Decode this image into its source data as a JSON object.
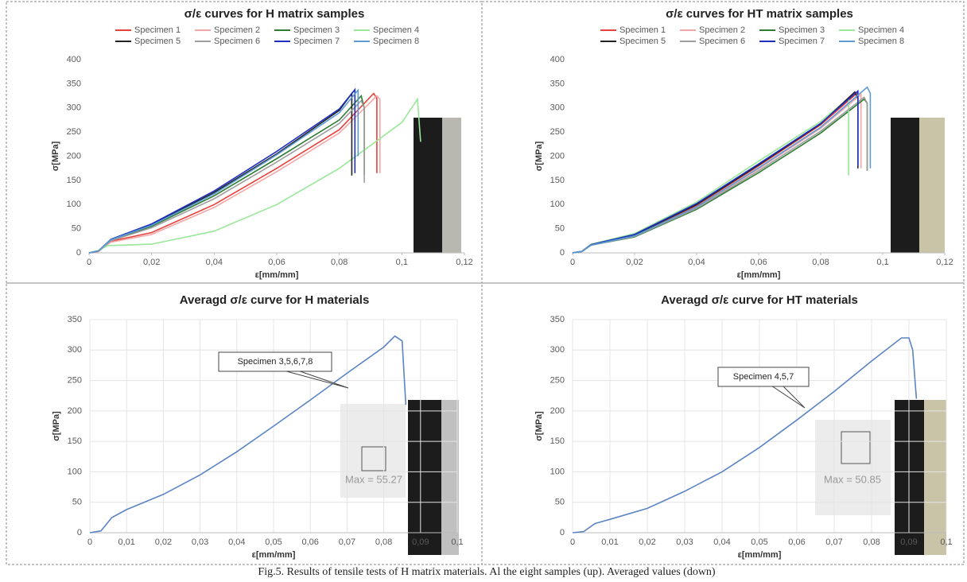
{
  "chart_data": [
    {
      "type": "line",
      "title": "σ/ε curves for H matrix samples",
      "xlabel": "ε[mm/mm]",
      "ylabel": "σ[MPa]",
      "xlim": [
        0,
        0.12
      ],
      "ylim": [
        0,
        400
      ],
      "grid": false,
      "legend": "top",
      "xticks": [
        0,
        {
          "value": 0.02,
          "label": "0,02"
        },
        {
          "value": 0.04,
          "label": "0,04"
        },
        {
          "value": 0.06,
          "label": "0,06"
        },
        {
          "value": 0.08,
          "label": "0,08"
        },
        {
          "value": 0.1,
          "label": "0,1"
        },
        {
          "value": 0.12,
          "label": "0,12"
        }
      ],
      "yticks": [
        0,
        50,
        100,
        150,
        200,
        250,
        300,
        350,
        400
      ],
      "series": [
        {
          "name": "Specimen 1",
          "color": "#e8413c",
          "x": [
            0,
            0.003,
            0.007,
            0.02,
            0.04,
            0.06,
            0.08,
            0.091,
            0.092,
            0.092
          ],
          "values": [
            0,
            3,
            24,
            42,
            100,
            175,
            255,
            330,
            320,
            165
          ]
        },
        {
          "name": "Specimen 2",
          "color": "#f4a6a6",
          "x": [
            0,
            0.003,
            0.007,
            0.02,
            0.04,
            0.06,
            0.08,
            0.092,
            0.093,
            0.093
          ],
          "values": [
            0,
            3,
            22,
            38,
            94,
            168,
            248,
            325,
            318,
            165
          ]
        },
        {
          "name": "Specimen 3",
          "color": "#2e7d32",
          "x": [
            0,
            0.003,
            0.007,
            0.02,
            0.04,
            0.06,
            0.08,
            0.087,
            0.088,
            0.088
          ],
          "values": [
            0,
            4,
            26,
            55,
            118,
            195,
            275,
            325,
            300,
            162
          ]
        },
        {
          "name": "Specimen 4",
          "color": "#98e898",
          "x": [
            0,
            0.003,
            0.006,
            0.02,
            0.04,
            0.06,
            0.08,
            0.1,
            0.105,
            0.106
          ],
          "values": [
            0,
            5,
            15,
            18,
            45,
            100,
            175,
            270,
            318,
            230
          ]
        },
        {
          "name": "Specimen 5",
          "color": "#222222",
          "x": [
            0,
            0.003,
            0.007,
            0.02,
            0.04,
            0.06,
            0.08,
            0.084,
            0.084
          ],
          "values": [
            0,
            4,
            27,
            58,
            125,
            205,
            295,
            330,
            160
          ]
        },
        {
          "name": "Specimen 6",
          "color": "#9e9e9e",
          "x": [
            0,
            0.003,
            0.007,
            0.02,
            0.04,
            0.06,
            0.08,
            0.087,
            0.088,
            0.088
          ],
          "values": [
            0,
            4,
            25,
            52,
            112,
            188,
            268,
            315,
            300,
            145
          ]
        },
        {
          "name": "Specimen 7",
          "color": "#1f2fbf",
          "x": [
            0,
            0.003,
            0.007,
            0.02,
            0.04,
            0.06,
            0.08,
            0.085,
            0.085
          ],
          "values": [
            0,
            4,
            28,
            60,
            128,
            210,
            298,
            338,
            165
          ]
        },
        {
          "name": "Specimen 8",
          "color": "#5b9bd5",
          "x": [
            0,
            0.003,
            0.007,
            0.02,
            0.04,
            0.06,
            0.08,
            0.086,
            0.086
          ],
          "values": [
            0,
            4,
            27,
            57,
            122,
            203,
            290,
            337,
            200
          ]
        }
      ]
    },
    {
      "type": "line",
      "title": "σ/ε curves for HT matrix samples",
      "xlabel": "ε[mm/mm]",
      "ylabel": "σ[MPa]",
      "xlim": [
        0,
        0.12
      ],
      "ylim": [
        0,
        400
      ],
      "grid": false,
      "legend": "top",
      "xticks": [
        0,
        {
          "value": 0.02,
          "label": "0,02"
        },
        {
          "value": 0.04,
          "label": "0,04"
        },
        {
          "value": 0.06,
          "label": "0,06"
        },
        {
          "value": 0.08,
          "label": "0,08"
        },
        {
          "value": 0.1,
          "label": "0,1"
        },
        {
          "value": 0.12,
          "label": "0,12"
        }
      ],
      "yticks": [
        0,
        50,
        100,
        150,
        200,
        250,
        300,
        350,
        400
      ],
      "series": [
        {
          "name": "Specimen 1",
          "color": "#e8413c",
          "x": [
            0,
            0.003,
            0.006,
            0.02,
            0.04,
            0.06,
            0.08,
            0.092,
            0.092
          ],
          "values": [
            0,
            3,
            17,
            36,
            98,
            180,
            265,
            332,
            180
          ]
        },
        {
          "name": "Specimen 2",
          "color": "#f4a6a6",
          "x": [
            0,
            0.003,
            0.006,
            0.02,
            0.04,
            0.06,
            0.08,
            0.093,
            0.093
          ],
          "values": [
            0,
            3,
            16,
            34,
            94,
            174,
            258,
            328,
            175
          ]
        },
        {
          "name": "Specimen 3",
          "color": "#2e7d32",
          "x": [
            0,
            0.003,
            0.006,
            0.02,
            0.04,
            0.06,
            0.08,
            0.094,
            0.095,
            0.095
          ],
          "values": [
            0,
            3,
            16,
            33,
            90,
            166,
            248,
            318,
            310,
            170
          ]
        },
        {
          "name": "Specimen 4",
          "color": "#98e898",
          "x": [
            0,
            0.003,
            0.006,
            0.02,
            0.04,
            0.06,
            0.08,
            0.089,
            0.089
          ],
          "values": [
            0,
            3,
            18,
            40,
            105,
            190,
            272,
            320,
            160
          ]
        },
        {
          "name": "Specimen 5",
          "color": "#222222",
          "x": [
            0,
            0.003,
            0.006,
            0.02,
            0.04,
            0.06,
            0.08,
            0.091,
            0.092,
            0.092
          ],
          "values": [
            0,
            3,
            17,
            37,
            100,
            182,
            267,
            333,
            320,
            175
          ]
        },
        {
          "name": "Specimen 6",
          "color": "#9e9e9e",
          "x": [
            0,
            0.003,
            0.006,
            0.02,
            0.04,
            0.06,
            0.08,
            0.094,
            0.095,
            0.095
          ],
          "values": [
            0,
            3,
            16,
            34,
            92,
            170,
            252,
            322,
            310,
            170
          ]
        },
        {
          "name": "Specimen 7",
          "color": "#1f2fbf",
          "x": [
            0,
            0.003,
            0.006,
            0.02,
            0.04,
            0.06,
            0.08,
            0.092,
            0.092
          ],
          "values": [
            0,
            3,
            17,
            38,
            102,
            184,
            268,
            335,
            180
          ]
        },
        {
          "name": "Specimen 8",
          "color": "#5b9bd5",
          "x": [
            0,
            0.003,
            0.006,
            0.02,
            0.04,
            0.06,
            0.08,
            0.095,
            0.096,
            0.096
          ],
          "values": [
            0,
            3,
            16,
            35,
            95,
            176,
            260,
            343,
            330,
            175
          ]
        }
      ]
    },
    {
      "type": "line",
      "title": "Averagd σ/ε curve for H materials",
      "xlabel": "ε[mm/mm]",
      "ylabel": "σ[MPa]",
      "xlim": [
        0,
        0.1
      ],
      "ylim": [
        0,
        350
      ],
      "grid": true,
      "xticks": [
        0,
        {
          "value": 0.01,
          "label": "0,01"
        },
        {
          "value": 0.02,
          "label": "0,02"
        },
        {
          "value": 0.03,
          "label": "0,03"
        },
        {
          "value": 0.04,
          "label": "0,04"
        },
        {
          "value": 0.05,
          "label": "0,05"
        },
        {
          "value": 0.06,
          "label": "0,06"
        },
        {
          "value": 0.07,
          "label": "0,07"
        },
        {
          "value": 0.08,
          "label": "0,08"
        },
        {
          "value": 0.09,
          "label": "0,09"
        },
        {
          "value": 0.1,
          "label": "0,1"
        }
      ],
      "yticks": [
        0,
        50,
        100,
        150,
        200,
        250,
        300,
        350
      ],
      "series": [
        {
          "color": "#5b84c4",
          "x": [
            0,
            0.003,
            0.006,
            0.01,
            0.02,
            0.03,
            0.04,
            0.05,
            0.06,
            0.07,
            0.08,
            0.083,
            0.085,
            0.086
          ],
          "values": [
            0,
            3,
            25,
            38,
            63,
            95,
            133,
            175,
            218,
            262,
            305,
            323,
            315,
            210
          ]
        }
      ],
      "annotations": [
        "Specimen 3,5,6,7,8",
        "Max = 55.27"
      ]
    },
    {
      "type": "line",
      "title": "Averagd σ/ε curve for HT materials",
      "xlabel": "ε[mm/mm]",
      "ylabel": "σ[MPa]",
      "xlim": [
        0,
        0.1
      ],
      "ylim": [
        0,
        350
      ],
      "grid": true,
      "xticks": [
        0,
        {
          "value": 0.01,
          "label": "0,01"
        },
        {
          "value": 0.02,
          "label": "0,02"
        },
        {
          "value": 0.03,
          "label": "0,03"
        },
        {
          "value": 0.04,
          "label": "0,04"
        },
        {
          "value": 0.05,
          "label": "0,05"
        },
        {
          "value": 0.06,
          "label": "0,06"
        },
        {
          "value": 0.07,
          "label": "0,07"
        },
        {
          "value": 0.08,
          "label": "0,08"
        },
        {
          "value": 0.09,
          "label": "0,09"
        },
        {
          "value": 0.1,
          "label": "0,1"
        }
      ],
      "yticks": [
        0,
        50,
        100,
        150,
        200,
        250,
        300,
        350
      ],
      "series": [
        {
          "color": "#5b84c4",
          "x": [
            0,
            0.003,
            0.006,
            0.01,
            0.02,
            0.03,
            0.04,
            0.05,
            0.06,
            0.07,
            0.08,
            0.088,
            0.09,
            0.091,
            0.092
          ],
          "values": [
            0,
            2,
            15,
            22,
            40,
            68,
            100,
            140,
            185,
            232,
            282,
            320,
            320,
            300,
            220
          ]
        }
      ],
      "annotations": [
        "Specimen 4,5,7",
        "Max = 50.85"
      ]
    }
  ],
  "caption": "Fig.5. Results of tensile tests of H matrix materials. Al the eight samples (up). Averaged values (down)"
}
